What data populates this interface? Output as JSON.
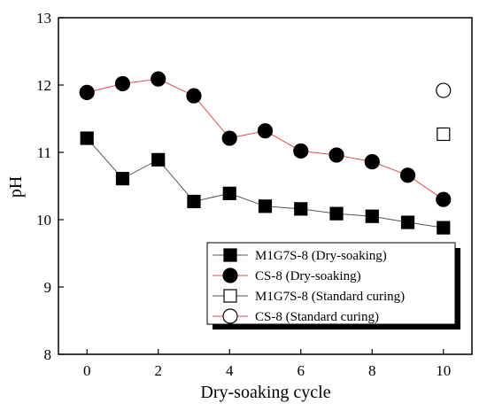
{
  "chart_data": {
    "type": "line",
    "title": "",
    "xlabel": "Dry-soaking cycle",
    "ylabel": "pH",
    "xlim": [
      -0.8,
      10.8
    ],
    "ylim": [
      8,
      13
    ],
    "xticks": [
      0,
      2,
      4,
      6,
      8,
      10
    ],
    "yticks": [
      8,
      9,
      10,
      11,
      12,
      13
    ],
    "grid": false,
    "legend_position": "lower-right",
    "series": [
      {
        "name": "M1G7S-8 (Dry-soaking)",
        "marker": "square",
        "filled": true,
        "line_color": "#555555",
        "x": [
          0,
          1,
          2,
          3,
          4,
          5,
          6,
          7,
          8,
          9,
          10
        ],
        "y": [
          11.21,
          10.61,
          10.89,
          10.27,
          10.39,
          10.2,
          10.16,
          10.09,
          10.05,
          9.96,
          9.88
        ]
      },
      {
        "name": "CS-8 (Dry-soaking)",
        "marker": "circle",
        "filled": true,
        "line_color": "#e05050",
        "x": [
          0,
          1,
          2,
          3,
          4,
          5,
          6,
          7,
          8,
          9,
          10
        ],
        "y": [
          11.89,
          12.02,
          12.09,
          11.84,
          11.21,
          11.32,
          11.02,
          10.96,
          10.86,
          10.66,
          10.3
        ]
      },
      {
        "name": "M1G7S-8 (Standard curing)",
        "marker": "square",
        "filled": false,
        "line_color": "#555555",
        "x": [
          10
        ],
        "y": [
          11.27
        ]
      },
      {
        "name": "CS-8 (Standard curing)",
        "marker": "circle",
        "filled": false,
        "line_color": "#e05050",
        "x": [
          10
        ],
        "y": [
          11.92
        ]
      }
    ]
  }
}
